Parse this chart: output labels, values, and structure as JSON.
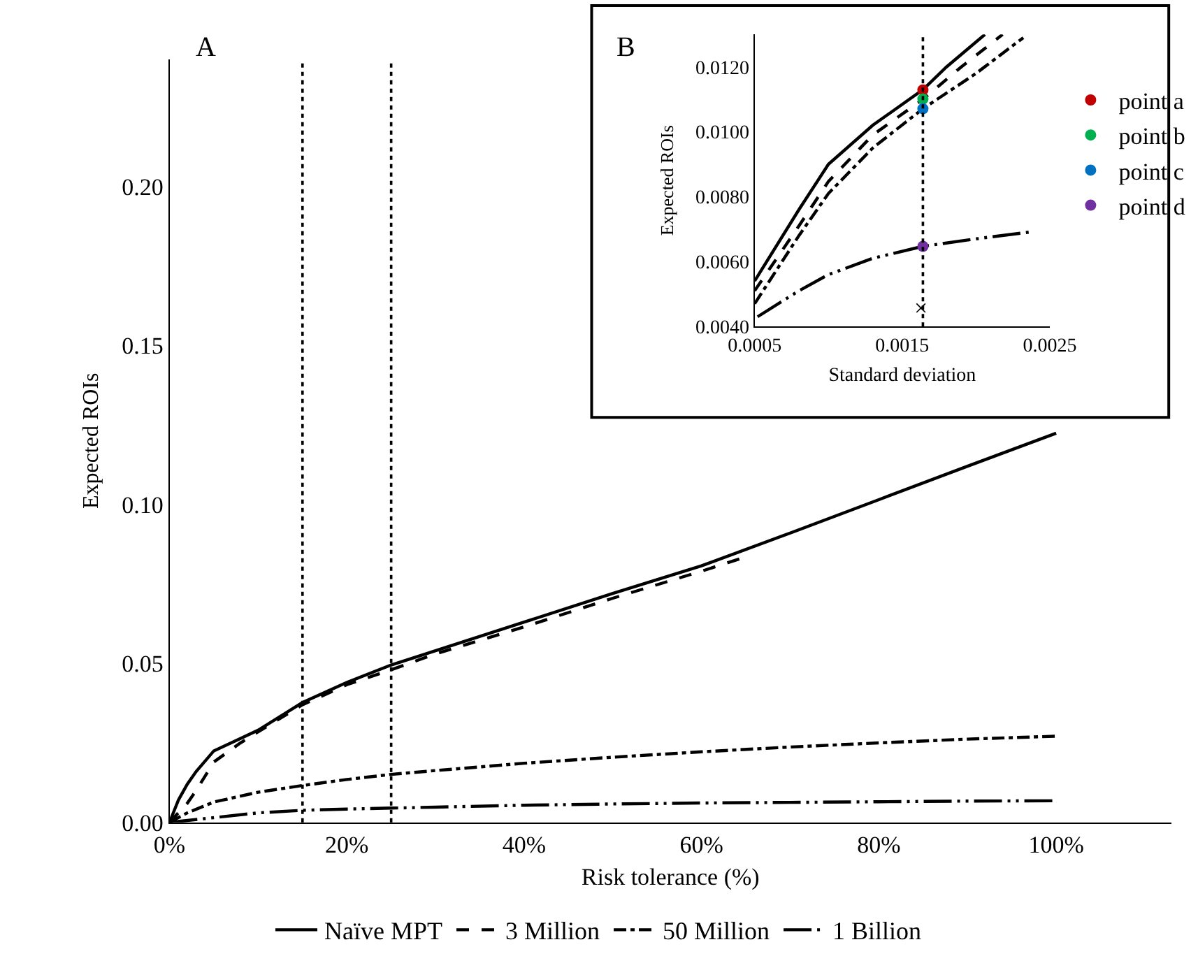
{
  "chart_data": [
    {
      "type": "line",
      "xlabel": "Risk tolerance (%)",
      "ylabel": "Expected ROIs",
      "annotations": [
        "A"
      ],
      "xlim": [
        0,
        113
      ],
      "xticks": [
        {
          "value": 0,
          "label": "0%"
        },
        {
          "value": 20,
          "label": "20%"
        },
        {
          "value": 40,
          "label": "40%"
        },
        {
          "value": 60,
          "label": "60%"
        },
        {
          "value": 80,
          "label": "80%"
        },
        {
          "value": 100,
          "label": "100%"
        }
      ],
      "ylim": [
        0,
        0.24
      ],
      "yticks": [
        {
          "value": 0,
          "label": "0.00"
        },
        {
          "value": 0.05,
          "label": "0.05"
        },
        {
          "value": 0.1,
          "label": "0.10"
        },
        {
          "value": 0.15,
          "label": "0.15"
        },
        {
          "value": 0.2,
          "label": "0.20"
        }
      ],
      "grid": false,
      "legend": "bottom",
      "ref_lines": [
        {
          "axis": "x",
          "value": 15,
          "label": null,
          "color": "#000000",
          "line_style": "dotted"
        },
        {
          "axis": "x",
          "value": 25,
          "label": null,
          "color": "#000000",
          "line_style": "dotted"
        }
      ],
      "series": [
        {
          "name": "Naïve MPT",
          "color": "#000000",
          "line_style": "solid",
          "x": [
            0,
            1,
            2,
            3,
            5,
            8,
            10,
            15,
            20,
            25,
            30,
            40,
            50,
            60,
            70,
            80,
            90,
            100
          ],
          "values": [
            0,
            0.007,
            0.012,
            0.016,
            0.0225,
            0.0264,
            0.029,
            0.0377,
            0.044,
            0.0495,
            0.054,
            0.063,
            0.072,
            0.0807,
            0.091,
            0.1015,
            0.112,
            0.1224
          ]
        },
        {
          "name": "3 Million",
          "color": "#000000",
          "line_style": "dashed",
          "x": [
            0,
            1,
            2,
            3,
            5,
            8,
            10,
            15,
            20,
            25,
            30,
            40,
            50,
            60,
            65
          ],
          "values": [
            0,
            0.003,
            0.006,
            0.01,
            0.019,
            0.025,
            0.0285,
            0.037,
            0.0433,
            0.048,
            0.053,
            0.0615,
            0.0705,
            0.079,
            0.0835
          ]
        },
        {
          "name": "50 Million",
          "color": "#000000",
          "line_style": "dashdot",
          "x": [
            0,
            2,
            5,
            10,
            15,
            20,
            25,
            30,
            40,
            50,
            60,
            70,
            80,
            90,
            100
          ],
          "values": [
            0,
            0.003,
            0.0064,
            0.0095,
            0.0116,
            0.0135,
            0.0151,
            0.0163,
            0.0186,
            0.0205,
            0.0222,
            0.0237,
            0.025,
            0.0262,
            0.0271
          ]
        },
        {
          "name": "1 Billion",
          "color": "#000000",
          "line_style": "dashdotdot",
          "x": [
            0,
            5,
            10,
            15,
            20,
            25,
            30,
            40,
            50,
            60,
            70,
            80,
            90,
            100
          ],
          "values": [
            0,
            0.0015,
            0.003,
            0.0038,
            0.0042,
            0.0045,
            0.0048,
            0.0054,
            0.0058,
            0.0061,
            0.0063,
            0.0065,
            0.0067,
            0.0068
          ]
        }
      ]
    },
    {
      "type": "line",
      "xlabel": "Standard deviation",
      "ylabel": "Expected ROIs",
      "annotations": [
        "B",
        "×"
      ],
      "xlim": [
        0.0005,
        0.0025
      ],
      "xticks": [
        0.0005,
        0.0015,
        0.0025
      ],
      "ylim": [
        0.004,
        0.013
      ],
      "yticks": [
        {
          "value": 0.004,
          "label": "0.0040"
        },
        {
          "value": 0.006,
          "label": "0.0060"
        },
        {
          "value": 0.008,
          "label": "0.0080"
        },
        {
          "value": 0.01,
          "label": "0.0100"
        },
        {
          "value": 0.012,
          "label": "0.0120"
        }
      ],
      "grid": false,
      "legend": "right",
      "ref_lines": [
        {
          "axis": "x",
          "value": 0.00164,
          "label": null,
          "color": "#000000",
          "line_style": "dotted"
        }
      ],
      "series": [
        {
          "color": "#000000",
          "line_style": "solid",
          "x": [
            0.0005,
            0.0008,
            0.001,
            0.0013,
            0.00164,
            0.0018,
            0.00206
          ],
          "values": [
            0.0054,
            0.0076,
            0.009,
            0.0102,
            0.0113,
            0.012,
            0.013
          ]
        },
        {
          "color": "#000000",
          "line_style": "dashed",
          "x": [
            0.0005,
            0.0008,
            0.001,
            0.0013,
            0.00164,
            0.0019,
            0.00218
          ],
          "values": [
            0.0051,
            0.0071,
            0.00847,
            0.0099,
            0.011,
            0.012,
            0.013
          ]
        },
        {
          "color": "#000000",
          "line_style": "dashdot",
          "x": [
            0.0005,
            0.0008,
            0.001,
            0.0013,
            0.00164,
            0.002,
            0.00232
          ],
          "values": [
            0.0047,
            0.0068,
            0.0081,
            0.0095,
            0.01071,
            0.0118,
            0.0129
          ]
        },
        {
          "color": "#000000",
          "line_style": "dashdotdot",
          "x": [
            0.00052,
            0.0008,
            0.001,
            0.0013,
            0.00164,
            0.002,
            0.00238
          ],
          "values": [
            0.0043,
            0.0051,
            0.0056,
            0.0061,
            0.00647,
            0.0067,
            0.00692
          ]
        },
        {
          "type": "scatter",
          "marker": "circle",
          "name": "point a",
          "color": "#c00000",
          "x": [
            0.00164
          ],
          "values": [
            0.01129
          ]
        },
        {
          "type": "scatter",
          "marker": "circle",
          "name": "point b",
          "color": "#00b050",
          "x": [
            0.00164
          ],
          "values": [
            0.01101
          ]
        },
        {
          "type": "scatter",
          "marker": "circle",
          "name": "point c",
          "color": "#0070c0",
          "x": [
            0.00164
          ],
          "values": [
            0.01071
          ]
        },
        {
          "type": "scatter",
          "marker": "circle",
          "name": "point d",
          "color": "#7030a0",
          "x": [
            0.00164
          ],
          "values": [
            0.00647
          ]
        }
      ]
    }
  ]
}
